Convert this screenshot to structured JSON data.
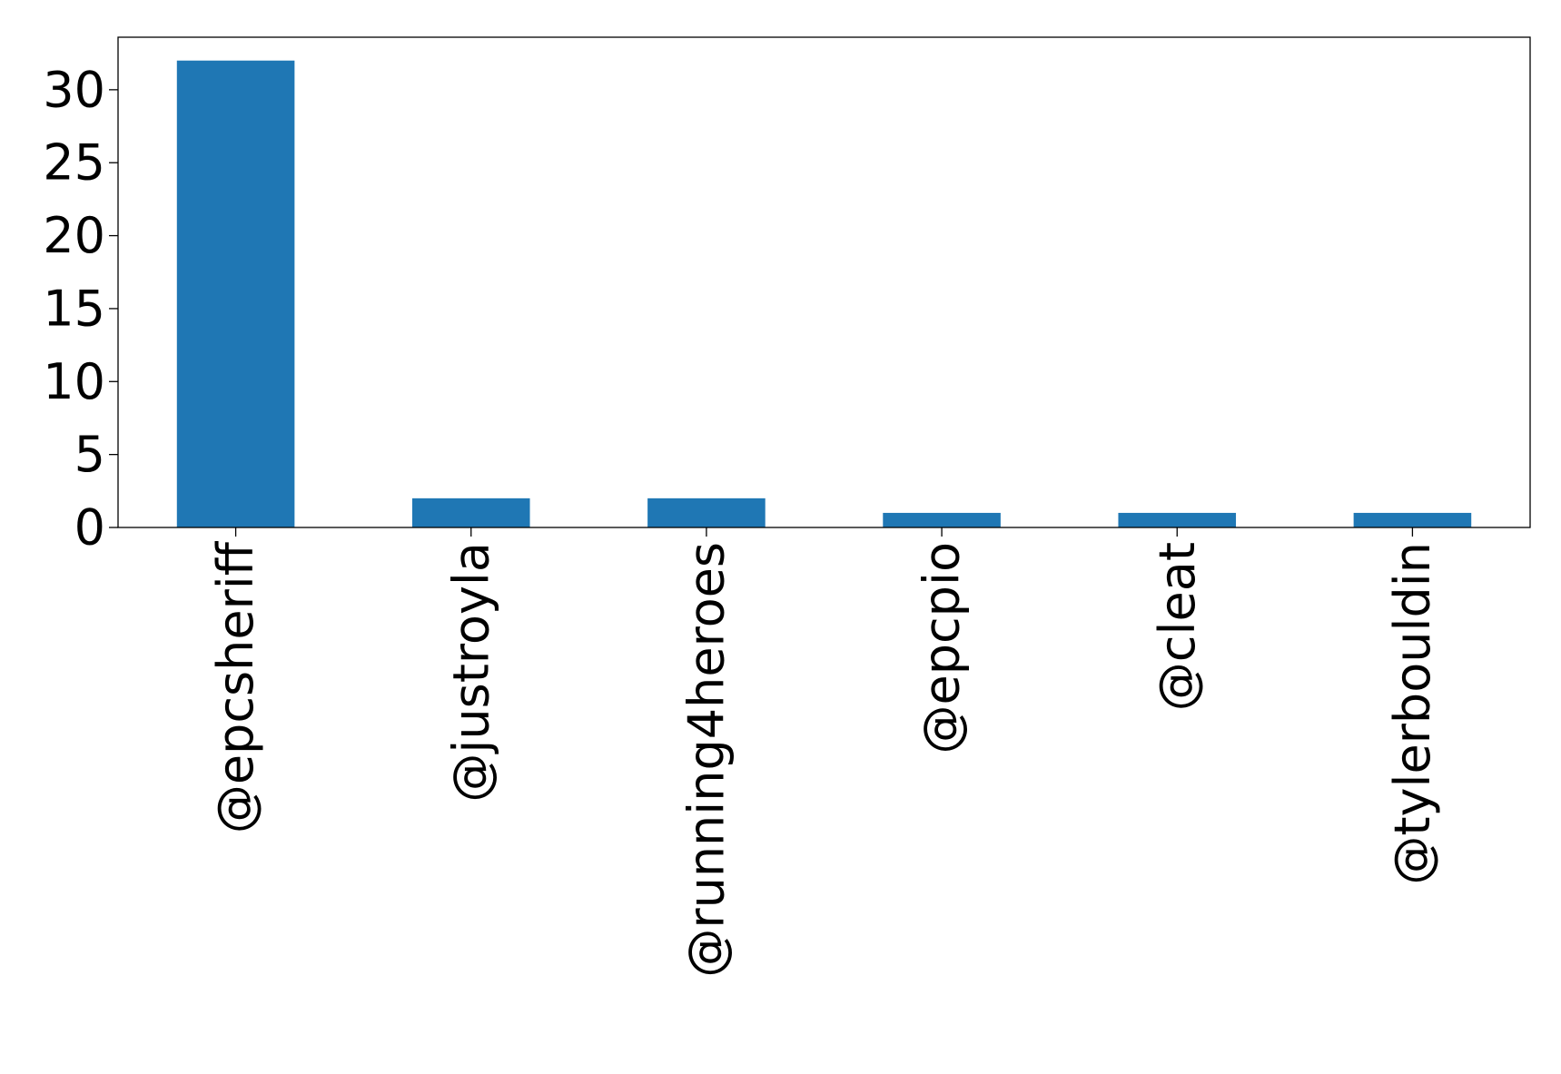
{
  "chart_data": {
    "type": "bar",
    "title": "",
    "xlabel": "",
    "ylabel": "",
    "categories": [
      "@epcsheriff",
      "@justroyla",
      "@running4heroes",
      "@epcpio",
      "@cleat",
      "@tylerbouldin"
    ],
    "values": [
      32,
      2,
      2,
      1,
      1,
      1
    ],
    "ylim": [
      0,
      33.6
    ],
    "yticks": [
      0,
      5,
      10,
      15,
      20,
      25,
      30
    ],
    "bar_color": "#1f77b4",
    "grid": false,
    "legend": "none",
    "x_tick_rotation": "vertical"
  }
}
